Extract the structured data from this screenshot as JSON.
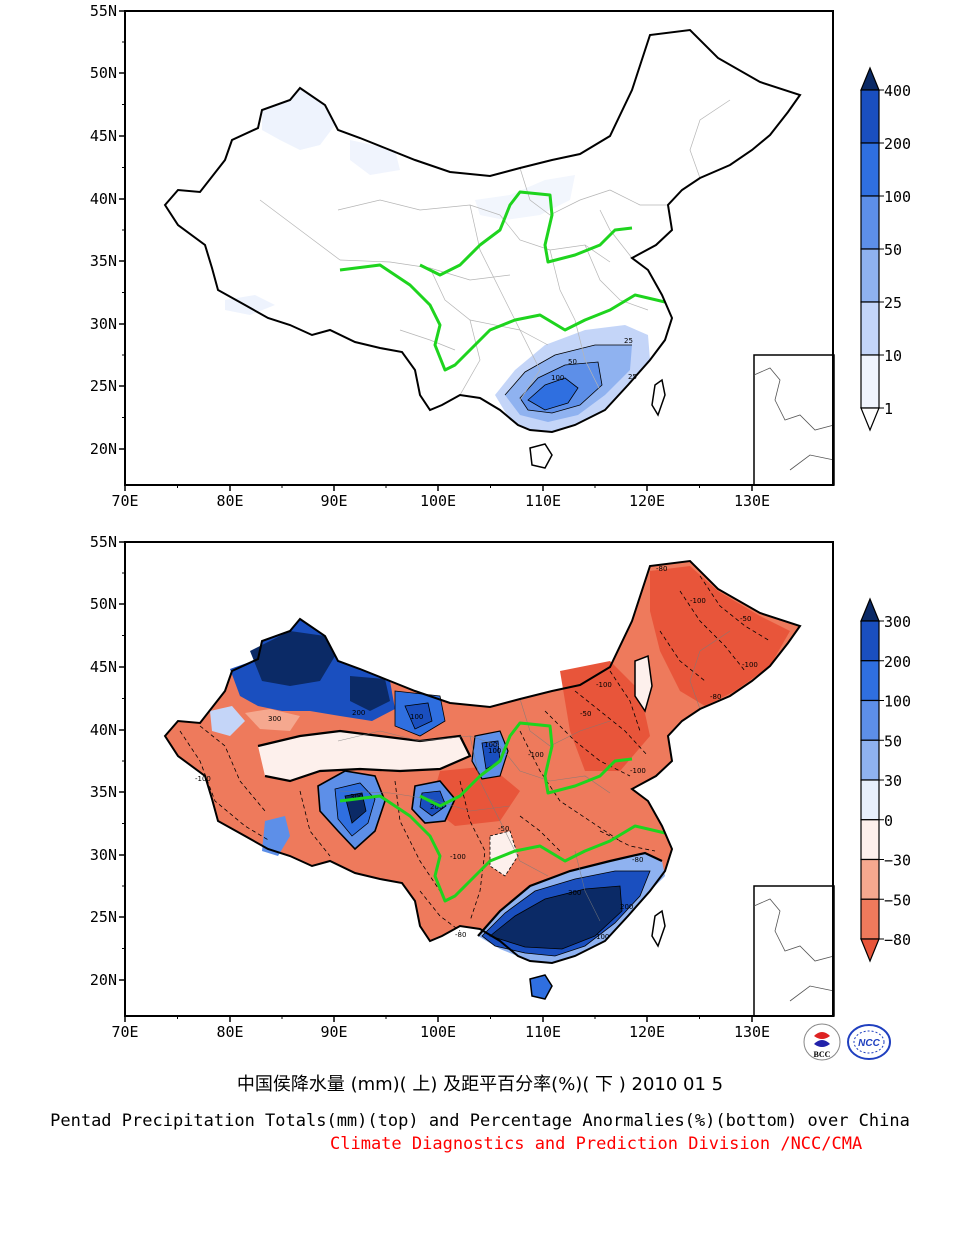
{
  "top_map": {
    "lat_labels": [
      "55N",
      "50N",
      "45N",
      "40N",
      "35N",
      "30N",
      "25N",
      "20N"
    ],
    "lon_labels": [
      "70E",
      "80E",
      "90E",
      "100E",
      "110E",
      "120E",
      "130E"
    ],
    "colorbar_labels": [
      "400",
      "200",
      "100",
      "50",
      "25",
      "10",
      "1"
    ],
    "colorbar_colors": [
      "#0b2a66",
      "#1a4fbf",
      "#2f6fe0",
      "#5d8fe8",
      "#8fb2f0",
      "#c4d5f8",
      "#f0f4fd",
      "#ffffff"
    ],
    "contour_labels": [
      "25",
      "50",
      "100",
      "25"
    ]
  },
  "bottom_map": {
    "lat_labels": [
      "55N",
      "50N",
      "45N",
      "40N",
      "35N",
      "30N",
      "25N",
      "20N"
    ],
    "lon_labels": [
      "70E",
      "80E",
      "90E",
      "100E",
      "110E",
      "120E",
      "130E"
    ],
    "colorbar_labels": [
      "300",
      "200",
      "100",
      "50",
      "30",
      "0",
      "−30",
      "−50",
      "−80"
    ],
    "colorbar_colors": [
      "#0b2a66",
      "#1a4fbf",
      "#2f6fe0",
      "#5d8fe8",
      "#8fb2f0",
      "#e8f0fc",
      "#fdf0ec",
      "#f5a88f",
      "#ee7a5c",
      "#e8553a"
    ],
    "contour_labels": [
      "-80",
      "-100",
      "-50",
      "-100",
      "300",
      "200",
      "100",
      "-100",
      "-80",
      "-50",
      "100",
      "-100",
      "300",
      "200",
      "100",
      "-50",
      "-100",
      "-80",
      "300",
      "200",
      "100",
      "-100",
      "-80",
      "-100"
    ]
  },
  "captions": {
    "chinese": "中国侯降水量 (mm)( 上) 及距平百分率(%)( 下 ) 2010 01 5",
    "english": "Pentad Precipitation Totals(mm)(top) and Percentage Anormalies(%)(bottom) over China",
    "org": "Climate Diagnostics and Prediction Division /NCC/CMA"
  },
  "logos": {
    "left": "BCC",
    "right": "NCC"
  }
}
